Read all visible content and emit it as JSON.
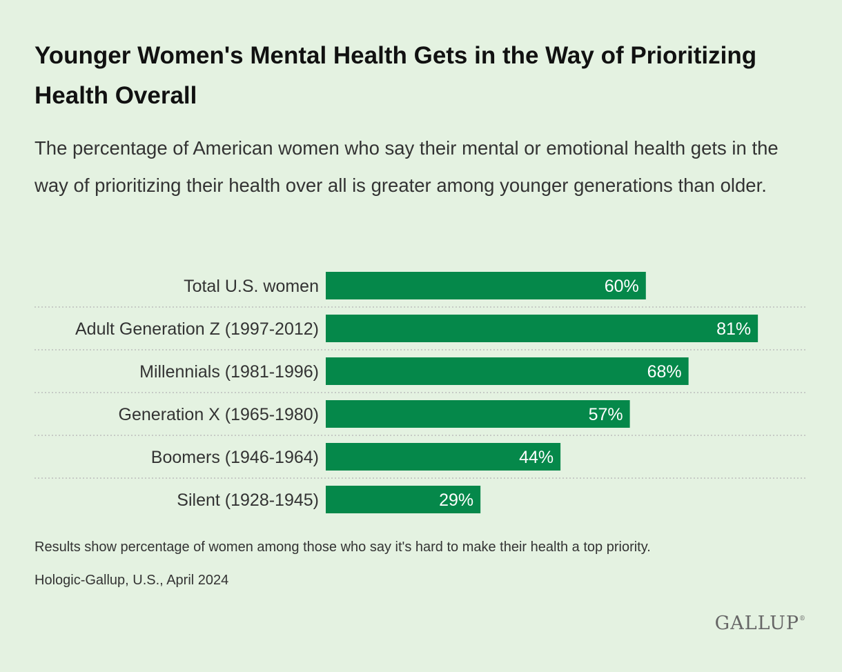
{
  "title": "Younger Women's Mental Health Gets in the Way of Prioritizing Health Overall",
  "subtitle": "The percentage of American women who say their mental or emotional health gets in the way of prioritizing their health over all is greater among younger generations than older.",
  "note": "Results show percentage of women among those who say it's hard to make their health a top priority.",
  "source": "Hologic-Gallup, U.S., April 2024",
  "logo": "GALLUP",
  "colors": {
    "bar": "#05884a",
    "background": "#e4f2e1",
    "divider": "#bcbcbc"
  },
  "chart_data": {
    "type": "bar",
    "orientation": "horizontal",
    "categories": [
      "Total U.S. women",
      "Adult Generation Z (1997-2012)",
      "Millennials (1981-1996)",
      "Generation X (1965-1980)",
      "Boomers (1946-1964)",
      "Silent (1928-1945)"
    ],
    "values": [
      60,
      81,
      68,
      57,
      44,
      29
    ],
    "value_labels": [
      "60%",
      "81%",
      "68%",
      "57%",
      "44%",
      "29%"
    ],
    "xlim": [
      0,
      90
    ],
    "grid": false,
    "legend": "none"
  }
}
